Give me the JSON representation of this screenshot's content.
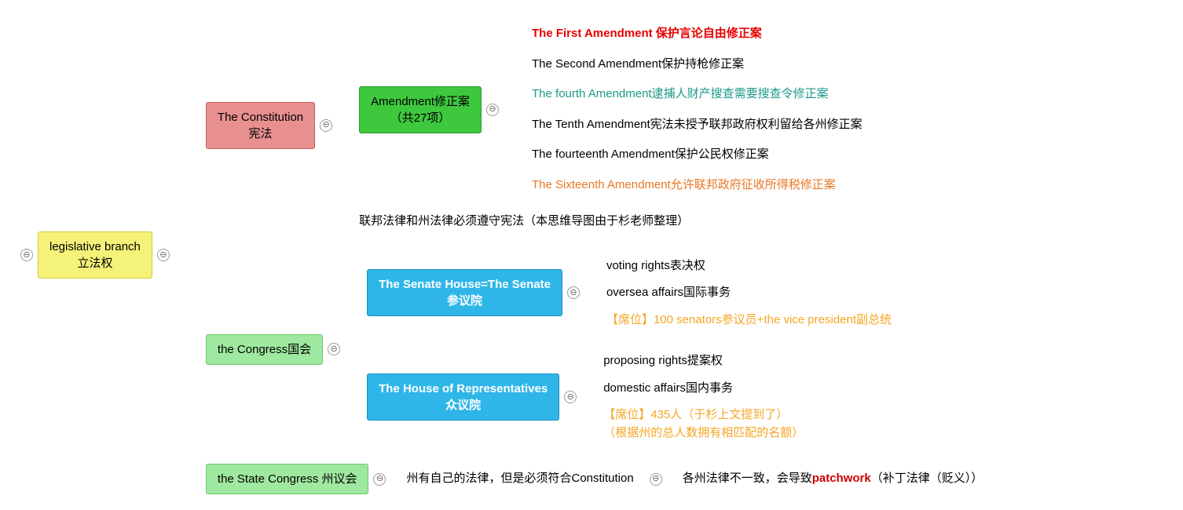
{
  "root": {
    "line1": "legislative branch",
    "line2": "立法权",
    "bg": "#f5f27a",
    "border": "#d4c93a"
  },
  "constitution": {
    "line1": "The Constitution",
    "line2": "宪法",
    "bg": "#e89090",
    "border": "#c96060"
  },
  "amendment": {
    "line1": "Amendment修正案",
    "line2": "（共27项）",
    "bg": "#3ec83e",
    "border": "#2a9a2a"
  },
  "amendments": [
    {
      "text": "The First Amendment 保护言论自由修正案",
      "color": "#e80000",
      "weight": "bold"
    },
    {
      "text": "The Second Amendment保护持枪修正案",
      "color": "#000000",
      "weight": "normal"
    },
    {
      "text": "The fourth Amendment逮捕人财产搜查需要搜查令修正案",
      "color": "#1a9988",
      "weight": "normal"
    },
    {
      "text": "The Tenth Amendment宪法未授予联邦政府权利留给各州修正案",
      "color": "#000000",
      "weight": "normal"
    },
    {
      "text": "The  fourteenth Amendment保护公民权修正案",
      "color": "#000000",
      "weight": "normal"
    },
    {
      "text": "The Sixteenth Amendment允许联邦政府征收所得税修正案",
      "color": "#e87722",
      "weight": "normal"
    }
  ],
  "const_note": "联邦法律和州法律必须遵守宪法（本思维导图由于杉老师整理）",
  "congress": {
    "text": "the Congress国会",
    "bg": "#9fe89f",
    "border": "#6dc96d"
  },
  "senate": {
    "line1": "The Senate House=The Senate",
    "line2": "参议院",
    "bg": "#2fb6e8",
    "border": "#1a8fc0",
    "color": "#ffffff"
  },
  "senate_items": [
    {
      "text": "voting rights表决权",
      "color": "#000000"
    },
    {
      "text": "oversea affairs国际事务",
      "color": "#000000"
    },
    {
      "text": "【席位】100 senators参议员+the vice president副总统",
      "color": "#f5a623"
    }
  ],
  "house": {
    "line1": "The House of Representatives",
    "line2": "众议院",
    "bg": "#2fb6e8",
    "border": "#1a8fc0",
    "color": "#ffffff"
  },
  "house_items": [
    {
      "text": "proposing rights提案权",
      "color": "#000000",
      "line2": ""
    },
    {
      "text": "domestic affairs国内事务",
      "color": "#000000",
      "line2": ""
    },
    {
      "text": "【席位】435人（于杉上文提到了）",
      "color": "#f5a623",
      "line2": "（根据州的总人数拥有相匹配的名额）"
    }
  ],
  "state": {
    "text": "the State Congress 州议会",
    "bg": "#9fe89f",
    "border": "#6dc96d"
  },
  "state_note": "州有自己的法律，但是必须符合Constitution",
  "state_leaf_pre": "各州法律不一致，会导致",
  "state_leaf_hl": "patchwork",
  "state_leaf_post": "（补丁法律（贬义））",
  "hl_color": "#cc0000",
  "toggle_glyph": "⊖"
}
